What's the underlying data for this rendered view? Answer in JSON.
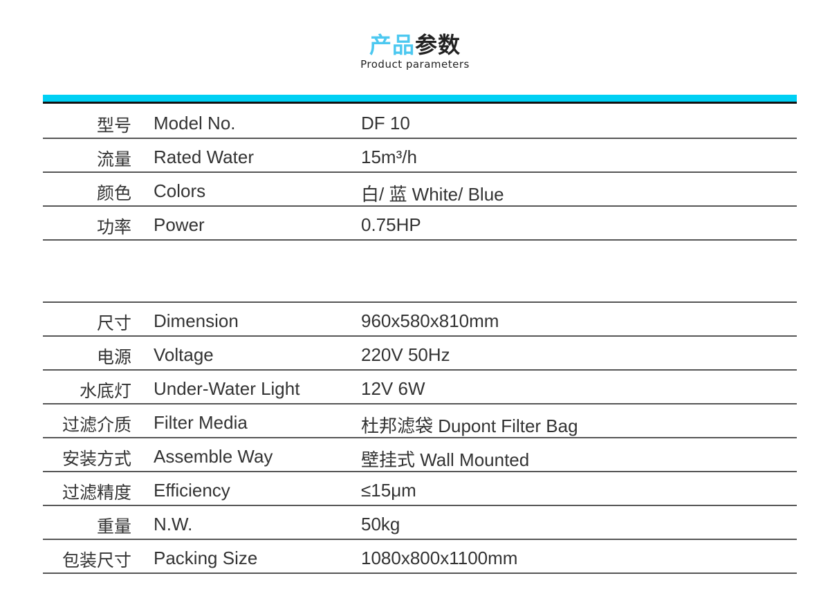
{
  "header": {
    "title_highlight": "产品",
    "title_rest": "参数",
    "subtitle": "Product parameters",
    "accent_color": "#00d0f4"
  },
  "group1": [
    {
      "cn": "型号",
      "en": "Model No.",
      "value": "DF 10"
    },
    {
      "cn": "流量",
      "en": "Rated Water",
      "value": "15m³/h"
    },
    {
      "cn": "颜色",
      "en": "Colors",
      "value": "白/ 蓝 White/ Blue"
    },
    {
      "cn": "功率",
      "en": "Power",
      "value": "0.75HP"
    }
  ],
  "group2": [
    {
      "cn": "尺寸",
      "en": "Dimension",
      "value": "960x580x810mm"
    },
    {
      "cn": "电源",
      "en": "Voltage",
      "value": "220V 50Hz"
    },
    {
      "cn": "水底灯",
      "en": "Under-Water Light",
      "value": "12V 6W"
    },
    {
      "cn": "过滤介质",
      "en": "Filter Media",
      "value": "杜邦滤袋 Dupont Filter Bag"
    },
    {
      "cn": "安装方式",
      "en": "Assemble Way",
      "value": "壁挂式 Wall Mounted"
    },
    {
      "cn": "过滤精度",
      "en": "Efficiency",
      "value": "≤15μm"
    },
    {
      "cn": "重量",
      "en": "N.W.",
      "value": "50kg"
    },
    {
      "cn": "包装尺寸",
      "en": "Packing Size",
      "value": "1080x800x1100mm"
    }
  ]
}
